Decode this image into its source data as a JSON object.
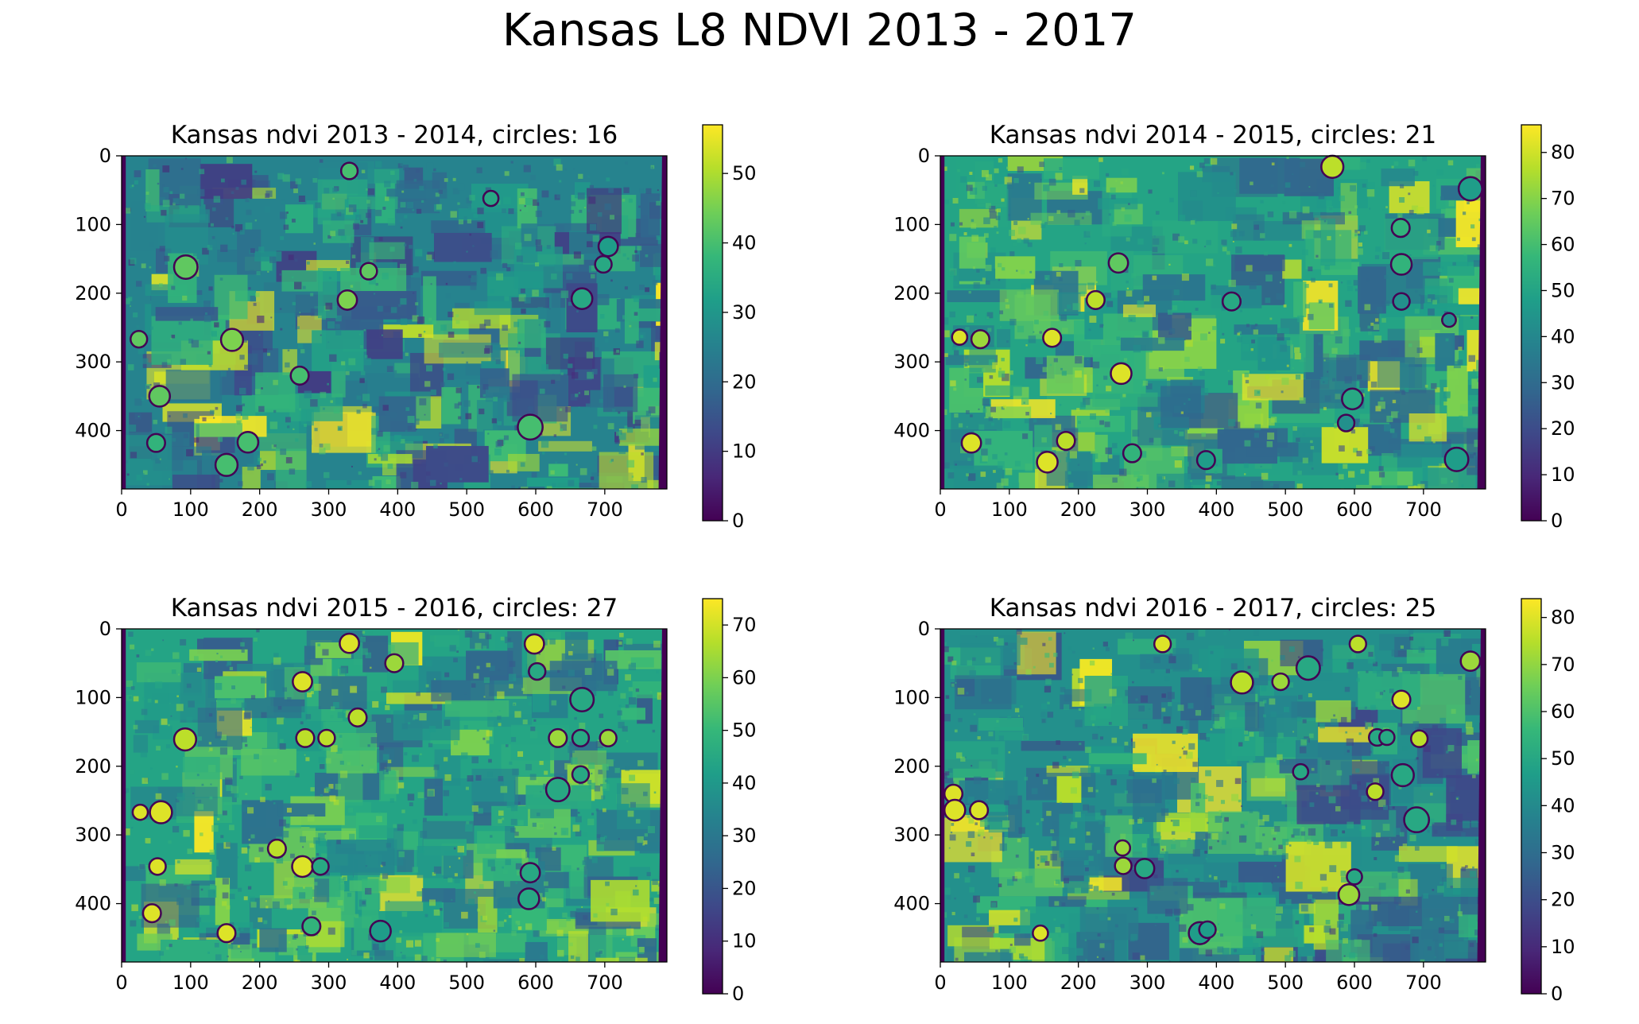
{
  "figure_title": "Kansas L8 NDVI 2013 - 2017",
  "colors": {
    "viridis": [
      "#440154",
      "#482878",
      "#3e4989",
      "#31688e",
      "#26828e",
      "#1f9e89",
      "#35b779",
      "#6ece58",
      "#b5de2b",
      "#fde725"
    ],
    "circle_stroke": "#440154",
    "axis": "#000000"
  },
  "chart_data": [
    {
      "type": "heatmap",
      "title": "Kansas ndvi 2013 - 2014, circles: 16",
      "xlim": [
        0,
        790
      ],
      "ylim": [
        0,
        485
      ],
      "xticks": [
        0,
        100,
        200,
        300,
        400,
        500,
        600,
        700
      ],
      "yticks": [
        0,
        100,
        200,
        300,
        400
      ],
      "colorbar": {
        "min": 0,
        "max": 57,
        "ticks": [
          0,
          10,
          20,
          30,
          40,
          50
        ]
      },
      "base_level": 0.45,
      "circles": [
        {
          "x": 330,
          "y": 22,
          "r": 12,
          "v": 0.7
        },
        {
          "x": 535,
          "y": 62,
          "r": 11,
          "v": 0.6
        },
        {
          "x": 705,
          "y": 132,
          "r": 14,
          "v": 0.55
        },
        {
          "x": 698,
          "y": 158,
          "r": 12,
          "v": 0.6
        },
        {
          "x": 93,
          "y": 162,
          "r": 17,
          "v": 0.75
        },
        {
          "x": 358,
          "y": 168,
          "r": 12,
          "v": 0.75
        },
        {
          "x": 327,
          "y": 210,
          "r": 14,
          "v": 0.8
        },
        {
          "x": 667,
          "y": 208,
          "r": 15,
          "v": 0.6
        },
        {
          "x": 25,
          "y": 267,
          "r": 12,
          "v": 0.75
        },
        {
          "x": 160,
          "y": 268,
          "r": 16,
          "v": 0.8
        },
        {
          "x": 258,
          "y": 320,
          "r": 13,
          "v": 0.7
        },
        {
          "x": 55,
          "y": 350,
          "r": 15,
          "v": 0.75
        },
        {
          "x": 592,
          "y": 395,
          "r": 18,
          "v": 0.7
        },
        {
          "x": 50,
          "y": 418,
          "r": 13,
          "v": 0.65
        },
        {
          "x": 183,
          "y": 417,
          "r": 15,
          "v": 0.7
        },
        {
          "x": 152,
          "y": 450,
          "r": 16,
          "v": 0.7
        }
      ]
    },
    {
      "type": "heatmap",
      "title": "Kansas ndvi 2014 - 2015, circles: 21",
      "xlim": [
        0,
        790
      ],
      "ylim": [
        0,
        485
      ],
      "xticks": [
        0,
        100,
        200,
        300,
        400,
        500,
        600,
        700
      ],
      "yticks": [
        0,
        100,
        200,
        300,
        400
      ],
      "colorbar": {
        "min": 0,
        "max": 86,
        "ticks": [
          0,
          10,
          20,
          30,
          40,
          50,
          60,
          70,
          80
        ]
      },
      "base_level": 0.58,
      "circles": [
        {
          "x": 568,
          "y": 16,
          "r": 16,
          "v": 0.9
        },
        {
          "x": 768,
          "y": 48,
          "r": 17,
          "v": 0.55
        },
        {
          "x": 667,
          "y": 105,
          "r": 13,
          "v": 0.65
        },
        {
          "x": 258,
          "y": 156,
          "r": 14,
          "v": 0.75
        },
        {
          "x": 668,
          "y": 158,
          "r": 15,
          "v": 0.65
        },
        {
          "x": 668,
          "y": 212,
          "r": 12,
          "v": 0.5
        },
        {
          "x": 422,
          "y": 212,
          "r": 13,
          "v": 0.6
        },
        {
          "x": 225,
          "y": 210,
          "r": 13,
          "v": 0.9
        },
        {
          "x": 737,
          "y": 239,
          "r": 10,
          "v": 0.5
        },
        {
          "x": 28,
          "y": 264,
          "r": 11,
          "v": 0.95
        },
        {
          "x": 58,
          "y": 267,
          "r": 13,
          "v": 0.85
        },
        {
          "x": 162,
          "y": 265,
          "r": 13,
          "v": 0.95
        },
        {
          "x": 262,
          "y": 317,
          "r": 15,
          "v": 0.95
        },
        {
          "x": 597,
          "y": 354,
          "r": 15,
          "v": 0.6
        },
        {
          "x": 588,
          "y": 389,
          "r": 12,
          "v": 0.5
        },
        {
          "x": 45,
          "y": 418,
          "r": 14,
          "v": 0.95
        },
        {
          "x": 182,
          "y": 415,
          "r": 13,
          "v": 0.9
        },
        {
          "x": 278,
          "y": 433,
          "r": 13,
          "v": 0.65
        },
        {
          "x": 155,
          "y": 446,
          "r": 15,
          "v": 0.95
        },
        {
          "x": 385,
          "y": 443,
          "r": 13,
          "v": 0.55
        },
        {
          "x": 748,
          "y": 442,
          "r": 17,
          "v": 0.55
        }
      ]
    },
    {
      "type": "heatmap",
      "title": "Kansas ndvi 2015 - 2016, circles: 27",
      "xlim": [
        0,
        790
      ],
      "ylim": [
        0,
        485
      ],
      "xticks": [
        0,
        100,
        200,
        300,
        400,
        500,
        600,
        700
      ],
      "yticks": [
        0,
        100,
        200,
        300,
        400
      ],
      "colorbar": {
        "min": 0,
        "max": 75,
        "ticks": [
          0,
          10,
          20,
          30,
          40,
          50,
          60,
          70
        ]
      },
      "base_level": 0.58,
      "circles": [
        {
          "x": 330,
          "y": 21,
          "r": 14,
          "v": 0.95
        },
        {
          "x": 598,
          "y": 22,
          "r": 14,
          "v": 0.95
        },
        {
          "x": 395,
          "y": 50,
          "r": 13,
          "v": 0.85
        },
        {
          "x": 602,
          "y": 62,
          "r": 12,
          "v": 0.6
        },
        {
          "x": 262,
          "y": 77,
          "r": 14,
          "v": 0.95
        },
        {
          "x": 667,
          "y": 103,
          "r": 17,
          "v": 0.6
        },
        {
          "x": 342,
          "y": 129,
          "r": 13,
          "v": 0.9
        },
        {
          "x": 92,
          "y": 161,
          "r": 16,
          "v": 0.9
        },
        {
          "x": 266,
          "y": 159,
          "r": 13,
          "v": 0.9
        },
        {
          "x": 297,
          "y": 159,
          "r": 12,
          "v": 0.9
        },
        {
          "x": 632,
          "y": 159,
          "r": 13,
          "v": 0.85
        },
        {
          "x": 665,
          "y": 159,
          "r": 12,
          "v": 0.6
        },
        {
          "x": 705,
          "y": 159,
          "r": 12,
          "v": 0.85
        },
        {
          "x": 665,
          "y": 212,
          "r": 12,
          "v": 0.6
        },
        {
          "x": 632,
          "y": 234,
          "r": 17,
          "v": 0.6
        },
        {
          "x": 27,
          "y": 267,
          "r": 11,
          "v": 0.95
        },
        {
          "x": 57,
          "y": 267,
          "r": 16,
          "v": 0.95
        },
        {
          "x": 225,
          "y": 320,
          "r": 13,
          "v": 0.9
        },
        {
          "x": 52,
          "y": 346,
          "r": 12,
          "v": 0.95
        },
        {
          "x": 262,
          "y": 346,
          "r": 15,
          "v": 0.95
        },
        {
          "x": 288,
          "y": 346,
          "r": 12,
          "v": 0.6
        },
        {
          "x": 592,
          "y": 355,
          "r": 14,
          "v": 0.6
        },
        {
          "x": 590,
          "y": 393,
          "r": 15,
          "v": 0.6
        },
        {
          "x": 44,
          "y": 414,
          "r": 13,
          "v": 0.95
        },
        {
          "x": 275,
          "y": 433,
          "r": 13,
          "v": 0.65
        },
        {
          "x": 152,
          "y": 443,
          "r": 13,
          "v": 0.95
        },
        {
          "x": 375,
          "y": 440,
          "r": 15,
          "v": 0.55
        }
      ]
    },
    {
      "type": "heatmap",
      "title": "Kansas ndvi 2016 - 2017, circles: 25",
      "xlim": [
        0,
        790
      ],
      "ylim": [
        0,
        485
      ],
      "xticks": [
        0,
        100,
        200,
        300,
        400,
        500,
        600,
        700
      ],
      "yticks": [
        0,
        100,
        200,
        300,
        400
      ],
      "colorbar": {
        "min": 0,
        "max": 84,
        "ticks": [
          0,
          10,
          20,
          30,
          40,
          50,
          60,
          70,
          80
        ]
      },
      "base_level": 0.5,
      "circles": [
        {
          "x": 322,
          "y": 22,
          "r": 12,
          "v": 0.95
        },
        {
          "x": 605,
          "y": 22,
          "r": 12,
          "v": 0.9
        },
        {
          "x": 768,
          "y": 47,
          "r": 14,
          "v": 0.85
        },
        {
          "x": 533,
          "y": 57,
          "r": 17,
          "v": 0.6
        },
        {
          "x": 437,
          "y": 78,
          "r": 16,
          "v": 0.9
        },
        {
          "x": 493,
          "y": 77,
          "r": 12,
          "v": 0.85
        },
        {
          "x": 668,
          "y": 103,
          "r": 13,
          "v": 0.95
        },
        {
          "x": 633,
          "y": 158,
          "r": 12,
          "v": 0.6
        },
        {
          "x": 647,
          "y": 158,
          "r": 11,
          "v": 0.6
        },
        {
          "x": 694,
          "y": 160,
          "r": 12,
          "v": 0.9
        },
        {
          "x": 522,
          "y": 208,
          "r": 11,
          "v": 0.6
        },
        {
          "x": 670,
          "y": 213,
          "r": 16,
          "v": 0.6
        },
        {
          "x": 630,
          "y": 237,
          "r": 12,
          "v": 0.9
        },
        {
          "x": 19,
          "y": 240,
          "r": 13,
          "v": 0.95
        },
        {
          "x": 21,
          "y": 264,
          "r": 15,
          "v": 0.95
        },
        {
          "x": 56,
          "y": 264,
          "r": 13,
          "v": 0.95
        },
        {
          "x": 690,
          "y": 278,
          "r": 18,
          "v": 0.6
        },
        {
          "x": 264,
          "y": 319,
          "r": 11,
          "v": 0.85
        },
        {
          "x": 265,
          "y": 345,
          "r": 12,
          "v": 0.85
        },
        {
          "x": 296,
          "y": 349,
          "r": 14,
          "v": 0.6
        },
        {
          "x": 600,
          "y": 361,
          "r": 11,
          "v": 0.6
        },
        {
          "x": 592,
          "y": 387,
          "r": 15,
          "v": 0.85
        },
        {
          "x": 145,
          "y": 443,
          "r": 11,
          "v": 0.95
        },
        {
          "x": 376,
          "y": 443,
          "r": 16,
          "v": 0.55
        },
        {
          "x": 387,
          "y": 438,
          "r": 12,
          "v": 0.55
        }
      ]
    }
  ]
}
